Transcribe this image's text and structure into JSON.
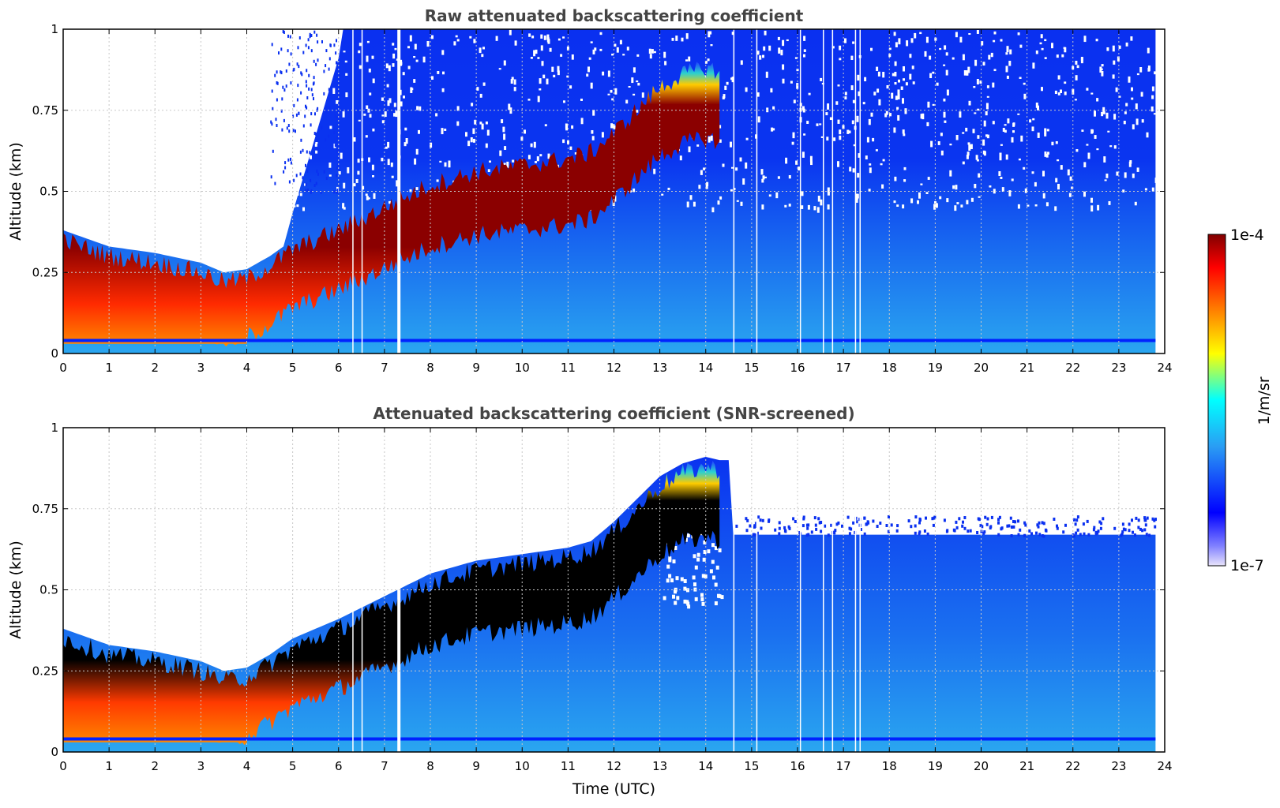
{
  "figure": {
    "xlabel": "Time (UTC)",
    "colorbar": {
      "label": "1/m/sr",
      "max_label": "1e-4",
      "min_label": "1e-7",
      "scale": "log",
      "range": [
        1e-07,
        0.0001
      ],
      "colormap": "jet-like (light violet, blue, cyan, green, yellow, orange, red, dark red)",
      "colors": [
        "#e8e4fb",
        "#0000ff",
        "#2a9df4",
        "#00ffff",
        "#ffff00",
        "#ff7700",
        "#ff0000",
        "#800000"
      ]
    }
  },
  "chart_data": [
    {
      "type": "heatmap",
      "title": "Raw attenuated backscattering coefficient",
      "xlabel": "",
      "ylabel": "Altitude (km)",
      "xlim": [
        0,
        24
      ],
      "ylim": [
        0,
        1
      ],
      "xticks": [
        "0",
        "1",
        "2",
        "3",
        "4",
        "5",
        "6",
        "7",
        "8",
        "9",
        "10",
        "11",
        "12",
        "13",
        "14",
        "15",
        "16",
        "17",
        "18",
        "19",
        "20",
        "21",
        "22",
        "23",
        "24"
      ],
      "yticks": [
        "0",
        "0.25",
        "0.5",
        "0.75",
        "1"
      ],
      "grid": true,
      "data_end_hour": 23.8,
      "aerosol_layer_top_km": {
        "hours": [
          0,
          1,
          2,
          3,
          3.5,
          4,
          4.5,
          5,
          6,
          7,
          8,
          9,
          10,
          11,
          11.5,
          12,
          12.5,
          13,
          13.5,
          14,
          14.3
        ],
        "values": [
          0.35,
          0.3,
          0.28,
          0.25,
          0.22,
          0.23,
          0.27,
          0.32,
          0.38,
          0.45,
          0.52,
          0.56,
          0.58,
          0.6,
          0.62,
          0.68,
          0.75,
          0.82,
          0.86,
          0.88,
          0.87
        ]
      },
      "surface_band_km": 0.04
    },
    {
      "type": "heatmap",
      "title": "Attenuated backscattering coefficient (SNR-screened)",
      "xlabel": "Time (UTC)",
      "ylabel": "Altitude (km)",
      "xlim": [
        0,
        24
      ],
      "ylim": [
        0,
        1
      ],
      "xticks": [
        "0",
        "1",
        "2",
        "3",
        "4",
        "5",
        "6",
        "7",
        "8",
        "9",
        "10",
        "11",
        "12",
        "13",
        "14",
        "15",
        "16",
        "17",
        "18",
        "19",
        "20",
        "21",
        "22",
        "23",
        "24"
      ],
      "yticks": [
        "0",
        "0.25",
        "0.5",
        "0.75",
        "1"
      ],
      "grid": true,
      "data_end_hour": 23.8,
      "screened_top_km_after_14_5h": 0.67,
      "surface_band_km": 0.04
    }
  ]
}
